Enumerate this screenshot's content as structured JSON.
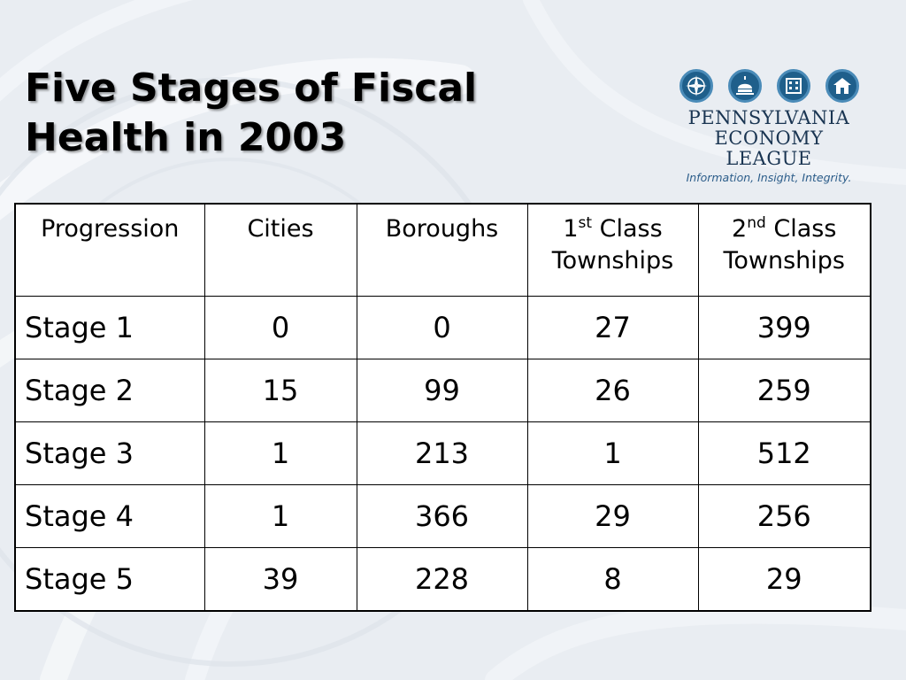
{
  "slide": {
    "title": "Five Stages of Fiscal\nHealth in 2003"
  },
  "logo": {
    "name_line1": "PENNSYLVANIA",
    "name_line2": "ECONOMY LEAGUE",
    "tagline": "Information, Insight, Integrity.",
    "icons": [
      "compass-icon",
      "capitol-dome-icon",
      "building-icon",
      "house-icon"
    ],
    "colors": {
      "icon_fill": "#1f5f8b",
      "text": "#1a3552"
    }
  },
  "table": {
    "headers": {
      "col0": "Progression",
      "col1": "Cities",
      "col2": "Boroughs",
      "col3_num": "1",
      "col3_sup": "st",
      "col3_rest": " Class",
      "col3_line2": "Townships",
      "col4_num": "2",
      "col4_sup": "nd",
      "col4_rest": " Class",
      "col4_line2": "Townships"
    },
    "rows": [
      {
        "stage": "Stage 1",
        "cities": "0",
        "boroughs": "0",
        "first_class": "27",
        "second_class": "399"
      },
      {
        "stage": "Stage 2",
        "cities": "15",
        "boroughs": "99",
        "first_class": "26",
        "second_class": "259"
      },
      {
        "stage": "Stage 3",
        "cities": "1",
        "boroughs": "213",
        "first_class": "1",
        "second_class": "512"
      },
      {
        "stage": "Stage 4",
        "cities": "1",
        "boroughs": "366",
        "first_class": "29",
        "second_class": "256"
      },
      {
        "stage": "Stage 5",
        "cities": "39",
        "boroughs": "228",
        "first_class": "8",
        "second_class": "29"
      }
    ]
  }
}
